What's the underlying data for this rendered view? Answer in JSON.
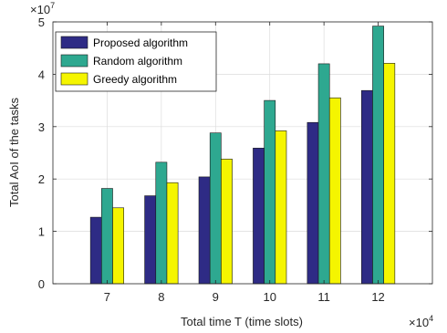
{
  "chart_data": {
    "type": "bar",
    "title": "",
    "xlabel": "Total time T (time slots)",
    "ylabel": "Total AoI of the tasks",
    "x_exponent_label": "×10",
    "x_exponent_power": "4",
    "y_exponent_label": "×10",
    "y_exponent_power": "7",
    "categories": [
      "7",
      "8",
      "9",
      "10",
      "11",
      "12"
    ],
    "xlim": [
      6,
      13
    ],
    "ylim": [
      0,
      5
    ],
    "y_ticks": [
      "0",
      "1",
      "2",
      "3",
      "4",
      "5"
    ],
    "grid": true,
    "legend_position": "top-left",
    "series": [
      {
        "name": "Proposed algorithm",
        "color": "#2e2b85",
        "values": [
          1.27,
          1.68,
          2.04,
          2.59,
          3.08,
          3.69
        ]
      },
      {
        "name": "Random algorithm",
        "color": "#2ea890",
        "values": [
          1.82,
          2.32,
          2.88,
          3.5,
          4.2,
          4.92
        ]
      },
      {
        "name": "Greedy algorithm",
        "color": "#f5f500",
        "values": [
          1.45,
          1.93,
          2.38,
          2.92,
          3.55,
          4.21
        ]
      }
    ]
  }
}
